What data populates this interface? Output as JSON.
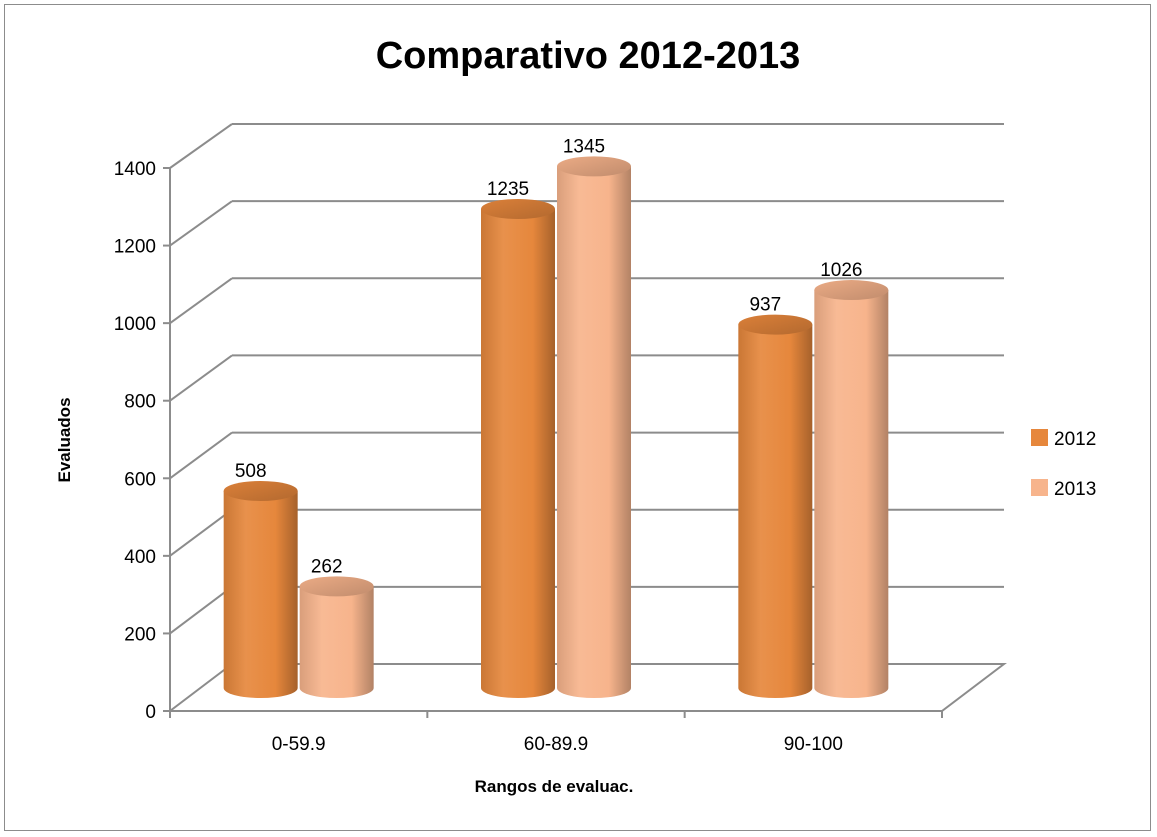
{
  "chart_data": {
    "type": "bar",
    "title": "Comparativo 2012-2013",
    "xlabel": "Rangos de evaluac.",
    "ylabel": "Evaluados",
    "categories": [
      "0-59.9",
      "60-89.9",
      "90-100"
    ],
    "series": [
      {
        "name": "2012",
        "values": [
          508,
          1235,
          937
        ],
        "color": "#e6873c"
      },
      {
        "name": "2013",
        "values": [
          262,
          1345,
          1026
        ],
        "color": "#f7b48c"
      }
    ],
    "ylim": [
      0,
      1400
    ],
    "y_ticks": [
      "0",
      "200",
      "400",
      "600",
      "800",
      "1000",
      "1200",
      "1400"
    ],
    "data_labels": [
      [
        "508",
        "1235",
        "937"
      ],
      [
        "262",
        "1345",
        "1026"
      ]
    ],
    "grid": true,
    "legend_position": "right",
    "style": "3d-cylinder",
    "colors": {
      "gridline": "#8c8c8c",
      "frame": "#8c8c8c"
    }
  }
}
